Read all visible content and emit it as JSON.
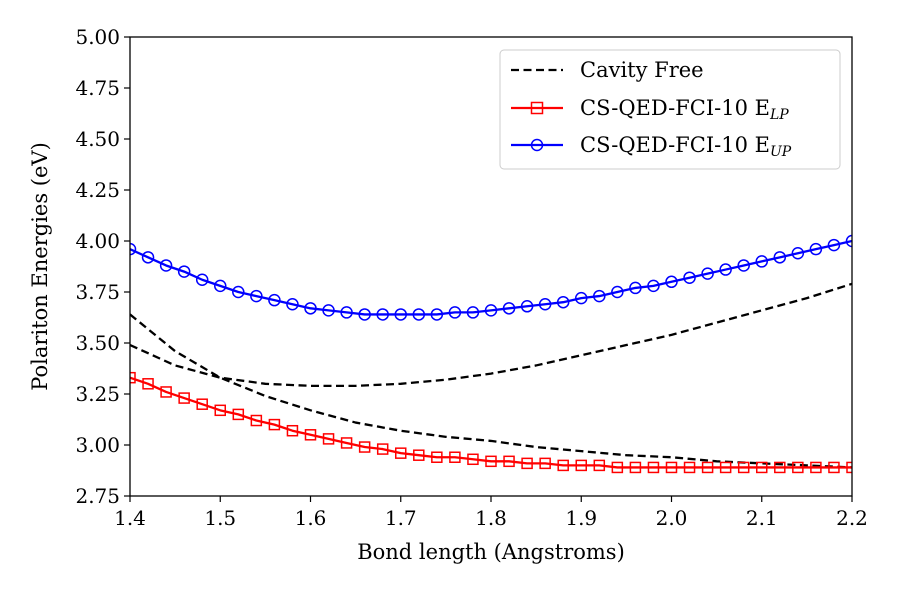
{
  "chart_data": {
    "type": "line",
    "xlabel": "Bond length (Angstroms)",
    "ylabel": "Polariton Energies (eV)",
    "xlim": [
      1.4,
      2.2
    ],
    "ylim": [
      2.75,
      5.0
    ],
    "xticks": [
      "1.4",
      "1.5",
      "1.6",
      "1.7",
      "1.8",
      "1.9",
      "2.0",
      "2.1",
      "2.2"
    ],
    "yticks": [
      "2.75",
      "3.00",
      "3.25",
      "3.50",
      "3.75",
      "4.00",
      "4.25",
      "4.50",
      "4.75",
      "5.00"
    ],
    "grid": false,
    "legend_position": "top-right",
    "legend": [
      {
        "main": "Cavity Free",
        "sub": "",
        "color": "#000000",
        "style": "dashed",
        "marker": "none"
      },
      {
        "main": "CS-QED-FCI-10 E",
        "sub": "LP",
        "color": "#ff0000",
        "style": "solid",
        "marker": "square"
      },
      {
        "main": "CS-QED-FCI-10 E",
        "sub": "UP",
        "color": "#0000ff",
        "style": "solid",
        "marker": "circle"
      }
    ],
    "series": [
      {
        "key": "cavity_free_upper",
        "color": "#000000",
        "style": "dashed",
        "marker": "none",
        "x": [
          1.4,
          1.45,
          1.5,
          1.55,
          1.6,
          1.65,
          1.7,
          1.75,
          1.8,
          1.85,
          1.9,
          1.95,
          2.0,
          2.05,
          2.1,
          2.15,
          2.2
        ],
        "y": [
          3.49,
          3.39,
          3.33,
          3.3,
          3.29,
          3.29,
          3.3,
          3.32,
          3.35,
          3.39,
          3.44,
          3.49,
          3.54,
          3.6,
          3.66,
          3.72,
          3.79
        ]
      },
      {
        "key": "cavity_free_lower",
        "color": "#000000",
        "style": "dashed",
        "marker": "none",
        "x": [
          1.4,
          1.45,
          1.5,
          1.55,
          1.6,
          1.65,
          1.7,
          1.75,
          1.8,
          1.85,
          1.9,
          1.95,
          2.0,
          2.05,
          2.1,
          2.15,
          2.2
        ],
        "y": [
          3.64,
          3.46,
          3.33,
          3.24,
          3.17,
          3.11,
          3.07,
          3.04,
          3.02,
          2.99,
          2.97,
          2.95,
          2.94,
          2.92,
          2.91,
          2.9,
          2.89
        ]
      },
      {
        "key": "lp",
        "color": "#ff0000",
        "style": "solid",
        "marker": "square",
        "x": [
          1.4,
          1.42,
          1.44,
          1.46,
          1.48,
          1.5,
          1.52,
          1.54,
          1.56,
          1.58,
          1.6,
          1.62,
          1.64,
          1.66,
          1.68,
          1.7,
          1.72,
          1.74,
          1.76,
          1.78,
          1.8,
          1.82,
          1.84,
          1.86,
          1.88,
          1.9,
          1.92,
          1.94,
          1.96,
          1.98,
          2.0,
          2.02,
          2.04,
          2.06,
          2.08,
          2.1,
          2.12,
          2.14,
          2.16,
          2.18,
          2.2
        ],
        "y": [
          3.33,
          3.3,
          3.26,
          3.23,
          3.2,
          3.17,
          3.15,
          3.12,
          3.1,
          3.07,
          3.05,
          3.03,
          3.01,
          2.99,
          2.98,
          2.96,
          2.95,
          2.94,
          2.94,
          2.93,
          2.92,
          2.92,
          2.91,
          2.91,
          2.9,
          2.9,
          2.9,
          2.89,
          2.89,
          2.89,
          2.89,
          2.89,
          2.89,
          2.89,
          2.89,
          2.89,
          2.89,
          2.89,
          2.89,
          2.89,
          2.89
        ]
      },
      {
        "key": "up",
        "color": "#0000ff",
        "style": "solid",
        "marker": "circle",
        "x": [
          1.4,
          1.42,
          1.44,
          1.46,
          1.48,
          1.5,
          1.52,
          1.54,
          1.56,
          1.58,
          1.6,
          1.62,
          1.64,
          1.66,
          1.68,
          1.7,
          1.72,
          1.74,
          1.76,
          1.78,
          1.8,
          1.82,
          1.84,
          1.86,
          1.88,
          1.9,
          1.92,
          1.94,
          1.96,
          1.98,
          2.0,
          2.02,
          2.04,
          2.06,
          2.08,
          2.1,
          2.12,
          2.14,
          2.16,
          2.18,
          2.2
        ],
        "y": [
          3.96,
          3.92,
          3.88,
          3.85,
          3.81,
          3.78,
          3.75,
          3.73,
          3.71,
          3.69,
          3.67,
          3.66,
          3.65,
          3.64,
          3.64,
          3.64,
          3.64,
          3.64,
          3.65,
          3.65,
          3.66,
          3.67,
          3.68,
          3.69,
          3.7,
          3.72,
          3.73,
          3.75,
          3.77,
          3.78,
          3.8,
          3.82,
          3.84,
          3.86,
          3.88,
          3.9,
          3.92,
          3.94,
          3.96,
          3.98,
          4.0
        ]
      }
    ]
  }
}
